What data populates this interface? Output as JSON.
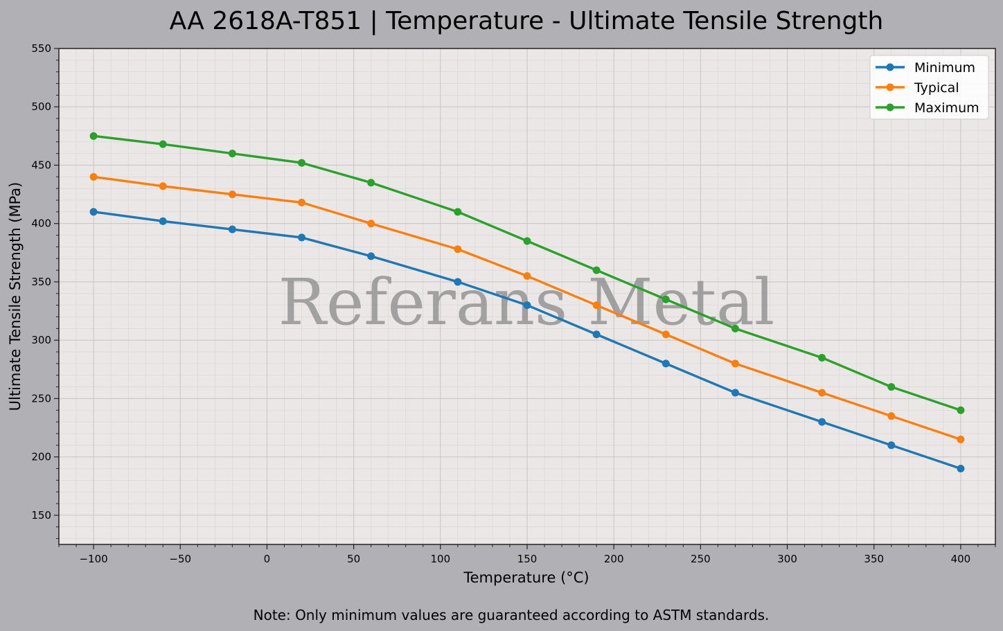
{
  "chart_data": {
    "type": "line",
    "title": "AA 2618A-T851 | Temperature - Ultimate Tensile Strength",
    "xlabel": "Temperature (°C)",
    "ylabel": "Ultimate Tensile Strength (MPa)",
    "xlim": [
      -120,
      420
    ],
    "ylim": [
      125,
      550
    ],
    "xticks": [
      -100,
      -50,
      0,
      50,
      100,
      150,
      200,
      250,
      300,
      350,
      400
    ],
    "xtick_labels": [
      "−100",
      "−50",
      "0",
      "50",
      "100",
      "150",
      "200",
      "250",
      "300",
      "350",
      "400"
    ],
    "yticks": [
      150,
      200,
      250,
      300,
      350,
      400,
      450,
      500,
      550
    ],
    "x": [
      -100,
      -60,
      -20,
      20,
      60,
      110,
      150,
      190,
      230,
      270,
      320,
      360,
      400
    ],
    "series": [
      {
        "name": "Minimum",
        "color": "#1f77b4",
        "values": [
          410,
          402,
          395,
          388,
          372,
          350,
          330,
          305,
          280,
          255,
          230,
          210,
          190
        ]
      },
      {
        "name": "Typical",
        "color": "#ff7f0e",
        "values": [
          440,
          432,
          425,
          418,
          400,
          378,
          355,
          330,
          305,
          280,
          255,
          235,
          215
        ]
      },
      {
        "name": "Maximum",
        "color": "#2ca02c",
        "values": [
          475,
          468,
          460,
          452,
          435,
          410,
          385,
          360,
          335,
          310,
          285,
          260,
          240
        ]
      }
    ],
    "grid": true,
    "legend": "top-right",
    "watermark": "Referans Metal",
    "note": "Note: Only minimum values are guaranteed according to ASTM standards."
  }
}
